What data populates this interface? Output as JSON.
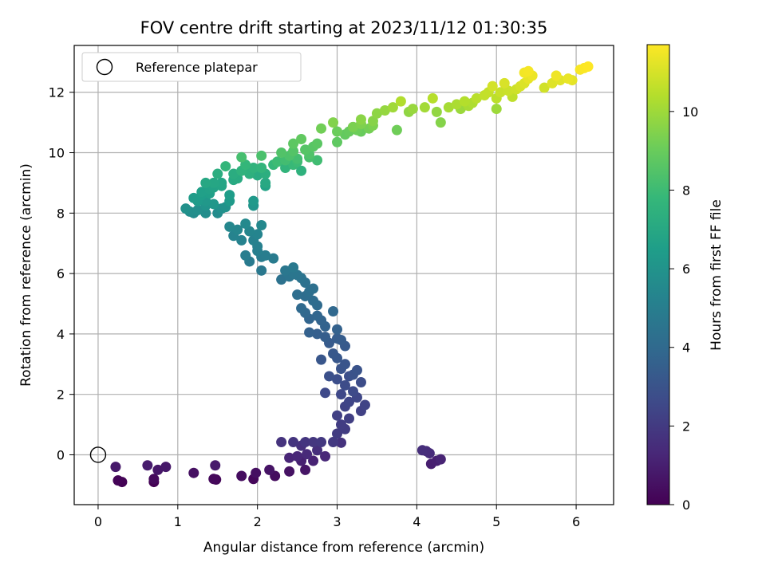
{
  "chart_data": {
    "type": "scatter",
    "title": "FOV centre drift starting at 2023/11/12 01:30:35",
    "xlabel": "Angular distance from reference (arcmin)",
    "ylabel": "Rotation from reference (arcmin)",
    "xlim": [
      -0.3,
      6.47
    ],
    "ylim": [
      -1.65,
      13.55
    ],
    "x_ticks": [
      0,
      1,
      2,
      3,
      4,
      5,
      6
    ],
    "y_ticks": [
      0,
      2,
      4,
      6,
      8,
      10,
      12
    ],
    "grid": true,
    "legend": {
      "placement": "upper left",
      "entries": [
        {
          "label": "Reference platepar",
          "marker": "hollow-circle"
        }
      ]
    },
    "reference_point": {
      "x": 0,
      "y": 0
    },
    "colorbar": {
      "label": "Hours from first FF file",
      "colormap": "viridis",
      "range": [
        0,
        11.7
      ],
      "ticks": [
        0,
        2,
        4,
        6,
        8,
        10
      ]
    },
    "series": [
      {
        "points": [
          [
            4.07,
            0.15
          ],
          [
            4.12,
            0.12
          ],
          [
            4.16,
            0.05
          ],
          [
            4.18,
            -0.3
          ],
          [
            4.25,
            -0.2
          ],
          [
            4.3,
            -0.15
          ],
          [
            2.15,
            -0.5
          ],
          [
            2.22,
            -0.7
          ],
          [
            1.95,
            -0.8
          ],
          [
            1.98,
            -0.6
          ],
          [
            1.8,
            -0.7
          ],
          [
            2.4,
            -0.1
          ],
          [
            2.4,
            -0.55
          ],
          [
            2.55,
            0.3
          ],
          [
            2.62,
            0.02
          ],
          [
            2.55,
            -0.2
          ],
          [
            2.6,
            -0.5
          ],
          [
            1.48,
            -0.82
          ],
          [
            1.45,
            -0.8
          ],
          [
            1.47,
            -0.35
          ],
          [
            1.2,
            -0.6
          ],
          [
            0.85,
            -0.4
          ],
          [
            0.75,
            -0.5
          ],
          [
            0.7,
            -0.8
          ],
          [
            0.7,
            -0.9
          ],
          [
            0.62,
            -0.35
          ],
          [
            0.3,
            -0.9
          ],
          [
            0.25,
            -0.85
          ],
          [
            0.22,
            -0.4
          ],
          [
            2.5,
            -0.05
          ],
          [
            2.3,
            0.42
          ],
          [
            2.45,
            0.42
          ],
          [
            2.6,
            0.42
          ],
          [
            2.7,
            0.42
          ],
          [
            2.8,
            0.42
          ],
          [
            2.95,
            0.42
          ],
          [
            2.7,
            -0.2
          ],
          [
            2.85,
            -0.05
          ],
          [
            3.05,
            0.4
          ],
          [
            3.0,
            0.7
          ],
          [
            3.1,
            0.85
          ],
          [
            2.75,
            0.15
          ],
          [
            3.05,
            1.0
          ],
          [
            3.15,
            1.2
          ],
          [
            3.3,
            1.45
          ],
          [
            3.35,
            1.65
          ],
          [
            3.1,
            1.6
          ],
          [
            3.0,
            1.3
          ],
          [
            3.15,
            1.75
          ],
          [
            3.25,
            1.9
          ],
          [
            3.05,
            2.0
          ],
          [
            3.2,
            2.1
          ],
          [
            3.1,
            2.3
          ],
          [
            3.3,
            2.4
          ],
          [
            3.0,
            2.5
          ],
          [
            3.15,
            2.6
          ],
          [
            2.85,
            2.05
          ],
          [
            3.25,
            2.8
          ],
          [
            3.05,
            2.85
          ],
          [
            3.1,
            3.0
          ],
          [
            2.9,
            2.6
          ],
          [
            3.2,
            2.65
          ],
          [
            3.0,
            3.2
          ],
          [
            2.95,
            3.35
          ],
          [
            2.8,
            3.15
          ],
          [
            3.1,
            3.6
          ],
          [
            2.9,
            3.7
          ],
          [
            3.0,
            3.85
          ],
          [
            3.05,
            3.8
          ],
          [
            3.0,
            4.15
          ],
          [
            2.85,
            3.9
          ],
          [
            2.75,
            4.0
          ],
          [
            2.65,
            4.05
          ],
          [
            2.95,
            4.75
          ],
          [
            2.85,
            4.25
          ],
          [
            2.8,
            4.45
          ],
          [
            2.75,
            4.6
          ],
          [
            2.65,
            4.5
          ],
          [
            2.6,
            4.7
          ],
          [
            2.55,
            4.85
          ],
          [
            2.75,
            4.95
          ],
          [
            2.7,
            5.1
          ],
          [
            2.6,
            5.25
          ],
          [
            2.5,
            5.3
          ],
          [
            2.65,
            5.4
          ],
          [
            2.7,
            5.5
          ],
          [
            2.6,
            5.7
          ],
          [
            2.55,
            5.85
          ],
          [
            2.5,
            5.95
          ],
          [
            2.45,
            6.0
          ],
          [
            2.4,
            5.9
          ],
          [
            2.35,
            6.1
          ],
          [
            2.3,
            5.8
          ],
          [
            2.45,
            6.2
          ],
          [
            2.2,
            6.5
          ],
          [
            2.1,
            6.6
          ],
          [
            2.05,
            6.55
          ],
          [
            2.0,
            6.75
          ],
          [
            2.05,
            6.1
          ],
          [
            1.9,
            6.4
          ],
          [
            1.85,
            6.6
          ],
          [
            2.0,
            6.9
          ],
          [
            1.95,
            7.1
          ],
          [
            2.0,
            7.3
          ],
          [
            2.05,
            7.6
          ],
          [
            1.9,
            7.4
          ],
          [
            1.85,
            7.65
          ],
          [
            1.75,
            7.45
          ],
          [
            1.65,
            7.55
          ],
          [
            1.7,
            7.25
          ],
          [
            1.8,
            7.1
          ],
          [
            1.65,
            8.6
          ],
          [
            1.6,
            8.2
          ],
          [
            1.55,
            8.15
          ],
          [
            1.45,
            8.3
          ],
          [
            1.35,
            8.4
          ],
          [
            1.25,
            8.1
          ],
          [
            1.2,
            8.0
          ],
          [
            1.15,
            8.05
          ],
          [
            1.1,
            8.15
          ],
          [
            1.2,
            8.5
          ],
          [
            1.3,
            8.6
          ],
          [
            1.3,
            8.7
          ],
          [
            1.45,
            8.85
          ],
          [
            1.55,
            9.0
          ],
          [
            1.7,
            9.3
          ],
          [
            1.75,
            9.15
          ],
          [
            1.6,
            9.55
          ],
          [
            1.5,
            9.3
          ],
          [
            1.45,
            9.0
          ],
          [
            1.4,
            8.8
          ],
          [
            1.35,
            9.0
          ],
          [
            1.8,
            9.85
          ],
          [
            1.85,
            9.6
          ],
          [
            1.9,
            9.4
          ],
          [
            1.95,
            9.5
          ],
          [
            2.0,
            9.25
          ],
          [
            2.1,
            9.3
          ],
          [
            2.2,
            9.6
          ],
          [
            2.1,
            8.9
          ],
          [
            1.95,
            8.4
          ],
          [
            1.95,
            8.25
          ],
          [
            2.05,
            9.9
          ],
          [
            2.25,
            9.7
          ],
          [
            2.35,
            9.5
          ],
          [
            2.45,
            9.6
          ],
          [
            2.5,
            9.8
          ],
          [
            2.6,
            10.1
          ],
          [
            2.7,
            10.2
          ],
          [
            2.75,
            10.3
          ],
          [
            2.55,
            10.45
          ],
          [
            2.65,
            9.95
          ],
          [
            2.8,
            10.8
          ],
          [
            2.75,
            9.75
          ],
          [
            2.5,
            9.7
          ],
          [
            2.55,
            9.4
          ],
          [
            2.4,
            9.9
          ],
          [
            2.35,
            9.75
          ],
          [
            2.3,
            10.0
          ],
          [
            2.45,
            10.3
          ],
          [
            2.95,
            11.0
          ],
          [
            3.1,
            10.6
          ],
          [
            3.15,
            10.7
          ],
          [
            3.2,
            10.85
          ],
          [
            3.3,
            10.95
          ],
          [
            3.45,
            10.9
          ],
          [
            3.25,
            10.75
          ],
          [
            3.4,
            10.8
          ],
          [
            3.0,
            10.35
          ],
          [
            3.5,
            11.3
          ],
          [
            3.6,
            11.4
          ],
          [
            3.7,
            11.5
          ],
          [
            3.75,
            10.75
          ],
          [
            3.8,
            11.7
          ],
          [
            3.9,
            11.35
          ],
          [
            3.95,
            11.45
          ],
          [
            4.1,
            11.5
          ],
          [
            4.2,
            11.8
          ],
          [
            4.25,
            11.35
          ],
          [
            4.3,
            11.0
          ],
          [
            4.4,
            11.5
          ],
          [
            4.5,
            11.6
          ],
          [
            4.55,
            11.45
          ],
          [
            4.6,
            11.7
          ],
          [
            4.7,
            11.65
          ],
          [
            4.75,
            11.8
          ],
          [
            4.85,
            11.9
          ],
          [
            4.9,
            12.0
          ],
          [
            4.95,
            12.2
          ],
          [
            5.0,
            11.8
          ],
          [
            5.05,
            12.0
          ],
          [
            5.1,
            12.3
          ],
          [
            5.15,
            12.05
          ],
          [
            5.2,
            11.85
          ],
          [
            5.25,
            12.1
          ],
          [
            5.3,
            12.2
          ],
          [
            5.35,
            12.3
          ],
          [
            5.4,
            12.45
          ],
          [
            5.45,
            12.55
          ],
          [
            5.0,
            11.45
          ],
          [
            5.6,
            12.15
          ],
          [
            5.7,
            12.3
          ],
          [
            5.75,
            12.55
          ],
          [
            5.8,
            12.4
          ],
          [
            5.9,
            12.45
          ],
          [
            5.95,
            12.4
          ],
          [
            6.05,
            12.75
          ],
          [
            6.1,
            12.8
          ],
          [
            6.15,
            12.85
          ],
          [
            5.35,
            12.65
          ],
          [
            5.4,
            12.7
          ],
          [
            4.65,
            11.55
          ],
          [
            3.45,
            11.05
          ],
          [
            3.3,
            11.1
          ],
          [
            3.2,
            10.85
          ],
          [
            3.3,
            10.7
          ],
          [
            3.0,
            10.7
          ],
          [
            2.65,
            9.85
          ],
          [
            2.45,
            10.05
          ],
          [
            2.25,
            9.7
          ],
          [
            1.65,
            8.4
          ],
          [
            1.5,
            8.0
          ],
          [
            1.35,
            8.0
          ],
          [
            1.25,
            8.4
          ],
          [
            1.35,
            8.25
          ],
          [
            1.4,
            8.65
          ],
          [
            1.55,
            8.9
          ],
          [
            1.7,
            9.1
          ],
          [
            1.8,
            9.4
          ],
          [
            1.9,
            9.3
          ],
          [
            2.05,
            9.5
          ],
          [
            2.1,
            9.0
          ],
          [
            1.95,
            8.25
          ]
        ]
      }
    ]
  }
}
